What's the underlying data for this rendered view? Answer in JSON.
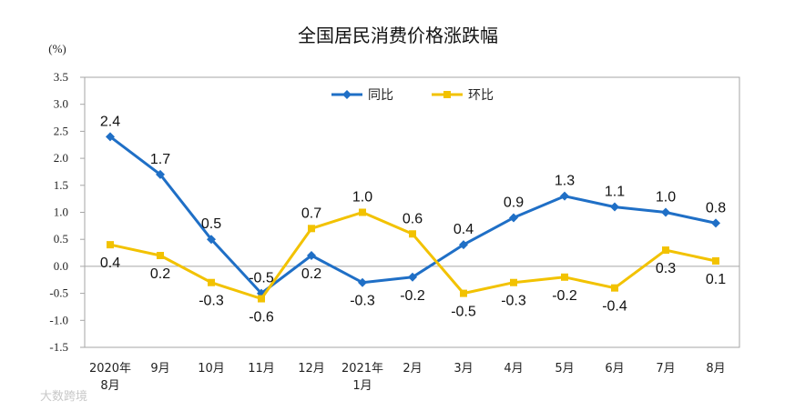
{
  "watermark": "大数跨境",
  "chart_data": {
    "type": "line",
    "title": "全国居民消费价格涨跌幅",
    "ylabel": "(%)",
    "ylim": [
      -1.5,
      3.5
    ],
    "ytick_step": 0.5,
    "ytick_labels": [
      "3.5",
      "3.0",
      "2.5",
      "2.0",
      "1.5",
      "1.0",
      "0.5",
      "0.0",
      "-0.5",
      "-1.0",
      "-1.5"
    ],
    "categories": [
      [
        "2020年",
        "8月"
      ],
      [
        "9月"
      ],
      [
        "10月"
      ],
      [
        "11月"
      ],
      [
        "12月"
      ],
      [
        "2021年",
        "1月"
      ],
      [
        "2月"
      ],
      [
        "3月"
      ],
      [
        "4月"
      ],
      [
        "5月"
      ],
      [
        "6月"
      ],
      [
        "7月"
      ],
      [
        "8月"
      ]
    ],
    "legend_position": "top-center",
    "grid": false,
    "series": [
      {
        "name": "同比",
        "color": "#1f6fc6",
        "marker": "diamond",
        "values": [
          2.4,
          1.7,
          0.5,
          -0.5,
          0.2,
          -0.3,
          -0.2,
          0.4,
          0.9,
          1.3,
          1.1,
          1.0,
          0.8
        ],
        "labels": [
          "2.4",
          "1.7",
          "0.5",
          "-0.5",
          "0.2",
          "-0.3",
          "-0.2",
          "0.4",
          "0.9",
          "1.3",
          "1.1",
          "1.0",
          "0.8"
        ],
        "label_pos": [
          "above",
          "above",
          "above",
          "above",
          "below",
          "below",
          "below",
          "above",
          "above",
          "above",
          "above",
          "above",
          "above"
        ]
      },
      {
        "name": "环比",
        "color": "#f2c200",
        "marker": "square",
        "values": [
          0.4,
          0.2,
          -0.3,
          -0.6,
          0.7,
          1.0,
          0.6,
          -0.5,
          -0.3,
          -0.2,
          -0.4,
          0.3,
          0.1
        ],
        "labels": [
          "0.4",
          "0.2",
          "-0.3",
          "-0.6",
          "0.7",
          "1.0",
          "0.6",
          "-0.5",
          "-0.3",
          "-0.2",
          "-0.4",
          "0.3",
          "0.1"
        ],
        "label_pos": [
          "below",
          "below",
          "below",
          "below",
          "above",
          "above",
          "above",
          "below",
          "below",
          "below",
          "below",
          "below",
          "below"
        ]
      }
    ]
  }
}
